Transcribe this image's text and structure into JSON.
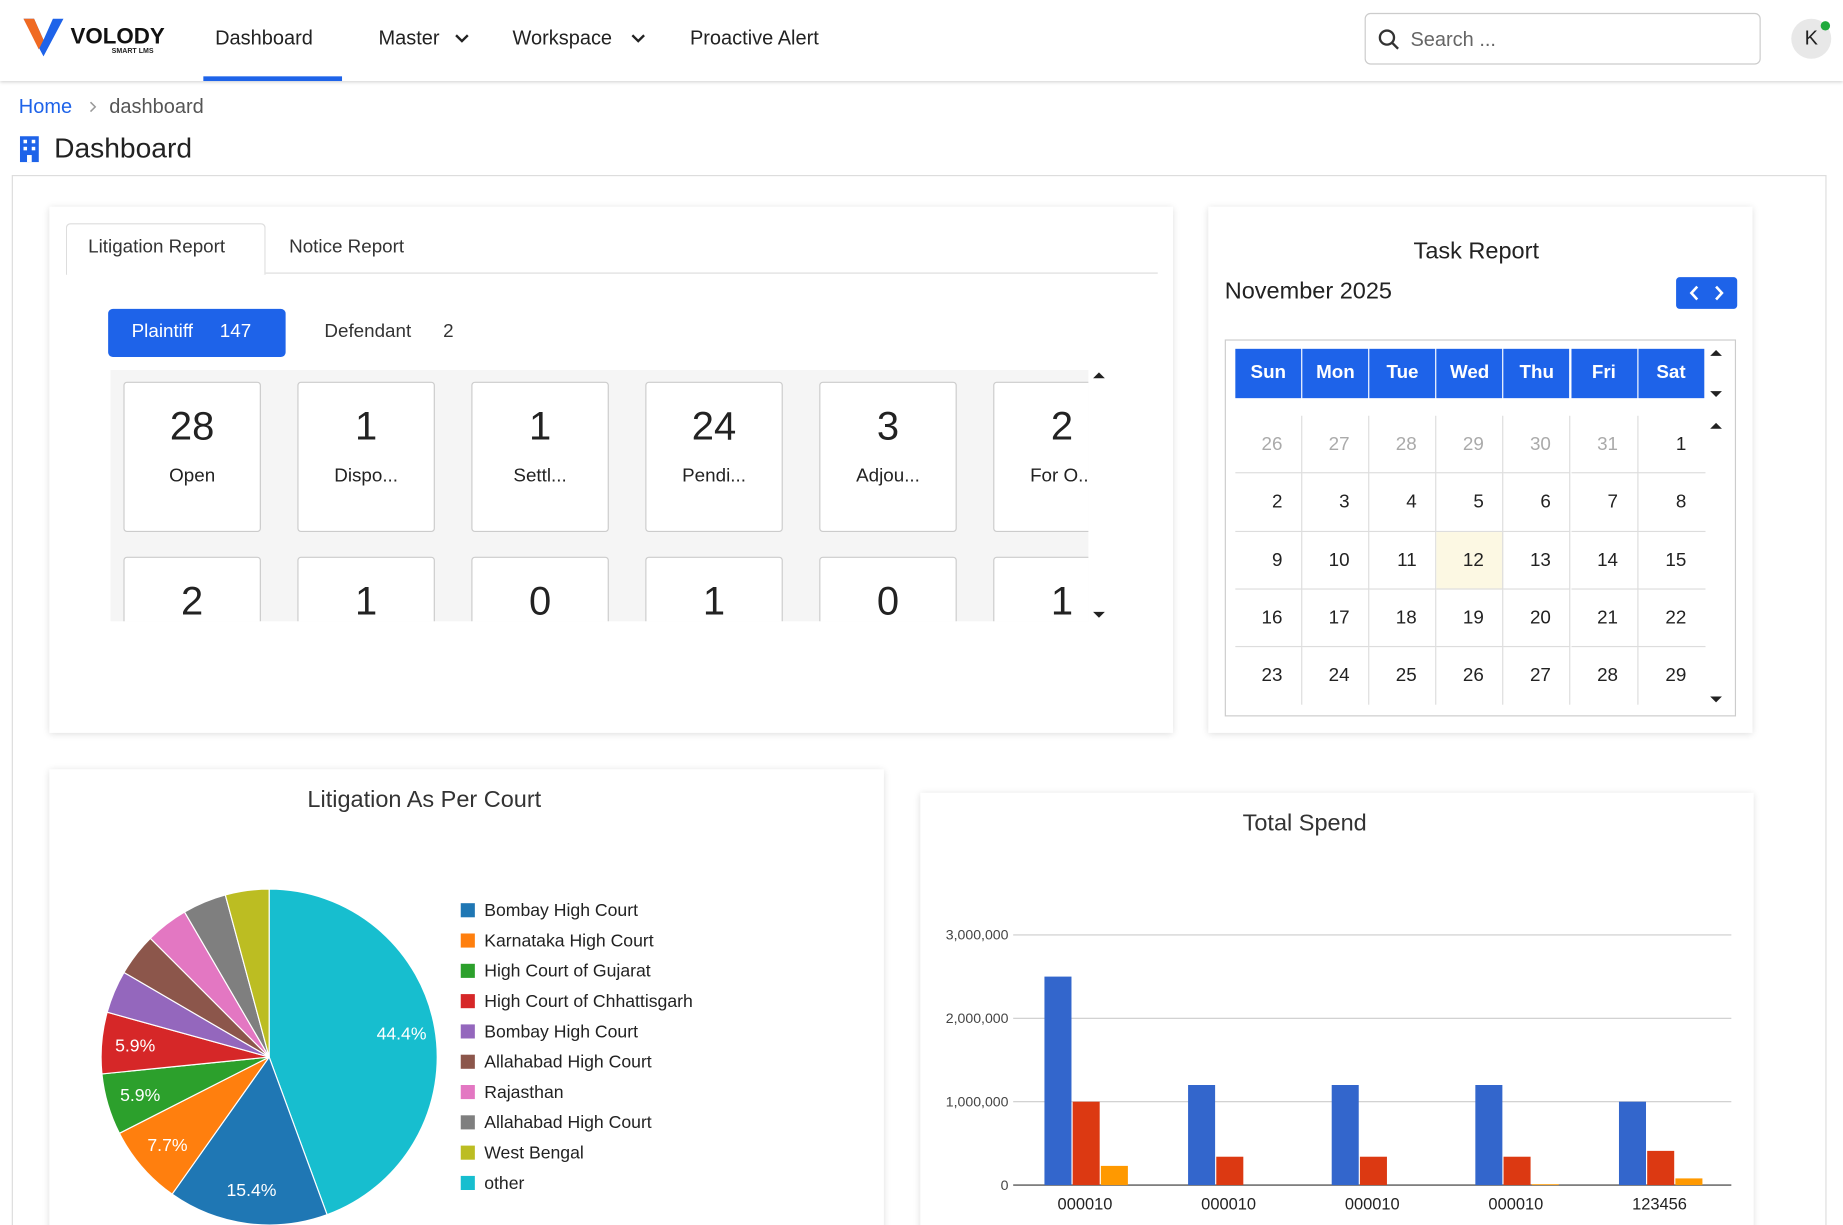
{
  "header": {
    "logo": "VOLODY",
    "logo_sub": "SMART LMS",
    "nav": [
      "Dashboard",
      "Master",
      "Workspace",
      "Proactive Alert"
    ],
    "search_placeholder": "Search ...",
    "avatar": "K"
  },
  "breadcrumb": [
    "Home",
    "dashboard"
  ],
  "page_title": "Dashboard",
  "litigation": {
    "tabs": [
      "Litigation Report",
      "Notice Report"
    ],
    "filters": [
      {
        "label": "Plaintiff",
        "count": 147
      },
      {
        "label": "Defendant",
        "count": 2
      }
    ],
    "cards": [
      {
        "count": 28,
        "label": "Open"
      },
      {
        "count": 1,
        "label": "Dispo..."
      },
      {
        "count": 1,
        "label": "Settl..."
      },
      {
        "count": 24,
        "label": "Pendi..."
      },
      {
        "count": 3,
        "label": "Adjou..."
      },
      {
        "count": 2,
        "label": "For O..."
      }
    ],
    "cards_row2": [
      2,
      1,
      0,
      1,
      0,
      1
    ]
  },
  "task_report": {
    "title": "Task Report",
    "month": "November 2025",
    "weekdays": [
      "Sun",
      "Mon",
      "Tue",
      "Wed",
      "Thu",
      "Fri",
      "Sat"
    ],
    "weeks": [
      [
        26,
        27,
        28,
        29,
        30,
        31,
        1
      ],
      [
        2,
        3,
        4,
        5,
        6,
        7,
        8
      ],
      [
        9,
        10,
        11,
        12,
        13,
        14,
        15
      ],
      [
        16,
        17,
        18,
        19,
        20,
        21,
        22
      ],
      [
        23,
        24,
        25,
        26,
        27,
        28,
        29
      ]
    ],
    "today": 12
  },
  "chart_data": [
    {
      "type": "pie",
      "title": "Litigation As Per Court",
      "categories": [
        "Bombay High Court",
        "Karnataka High Court",
        "High Court of Gujarat",
        "High Court of Chhattisgarh",
        "Bombay High Court",
        "Allahabad High Court",
        "Rajasthan",
        "Allahabad High Court",
        "West Bengal",
        "other"
      ],
      "values": [
        15.4,
        7.7,
        5.9,
        5.9,
        4.1,
        4.1,
        4.1,
        4.2,
        4.2,
        44.4
      ],
      "value_labels": [
        "15.4%",
        "7.7%",
        "5.9%",
        "5.9%",
        null,
        null,
        null,
        null,
        null,
        "44.4%"
      ],
      "colors": [
        "#1f77b4",
        "#ff7f0e",
        "#2ca02c",
        "#d62728",
        "#9467bd",
        "#8c564b",
        "#e377c2",
        "#7f7f7f",
        "#bcbd22",
        "#17becf"
      ]
    },
    {
      "type": "bar",
      "title": "Total Spend",
      "categories": [
        "000010",
        "000010",
        "000010",
        "000010",
        "123456"
      ],
      "series": [
        {
          "color": "#3366cc",
          "values": [
            2500000,
            1200000,
            1200000,
            1200000,
            1000000
          ]
        },
        {
          "color": "#dc3912",
          "values": [
            1000000,
            340000,
            340000,
            340000,
            410000
          ]
        },
        {
          "color": "#ff9900",
          "values": [
            230000,
            0,
            0,
            10000,
            80000
          ]
        }
      ],
      "ylim": [
        0,
        3000000
      ],
      "yticks": [
        0,
        {
          "value": 1000000,
          "label": "1,000,000"
        },
        {
          "value": 2000000,
          "label": "2,000,000"
        },
        {
          "value": 3000000,
          "label": "3,000,000"
        }
      ],
      "grid": true
    }
  ]
}
